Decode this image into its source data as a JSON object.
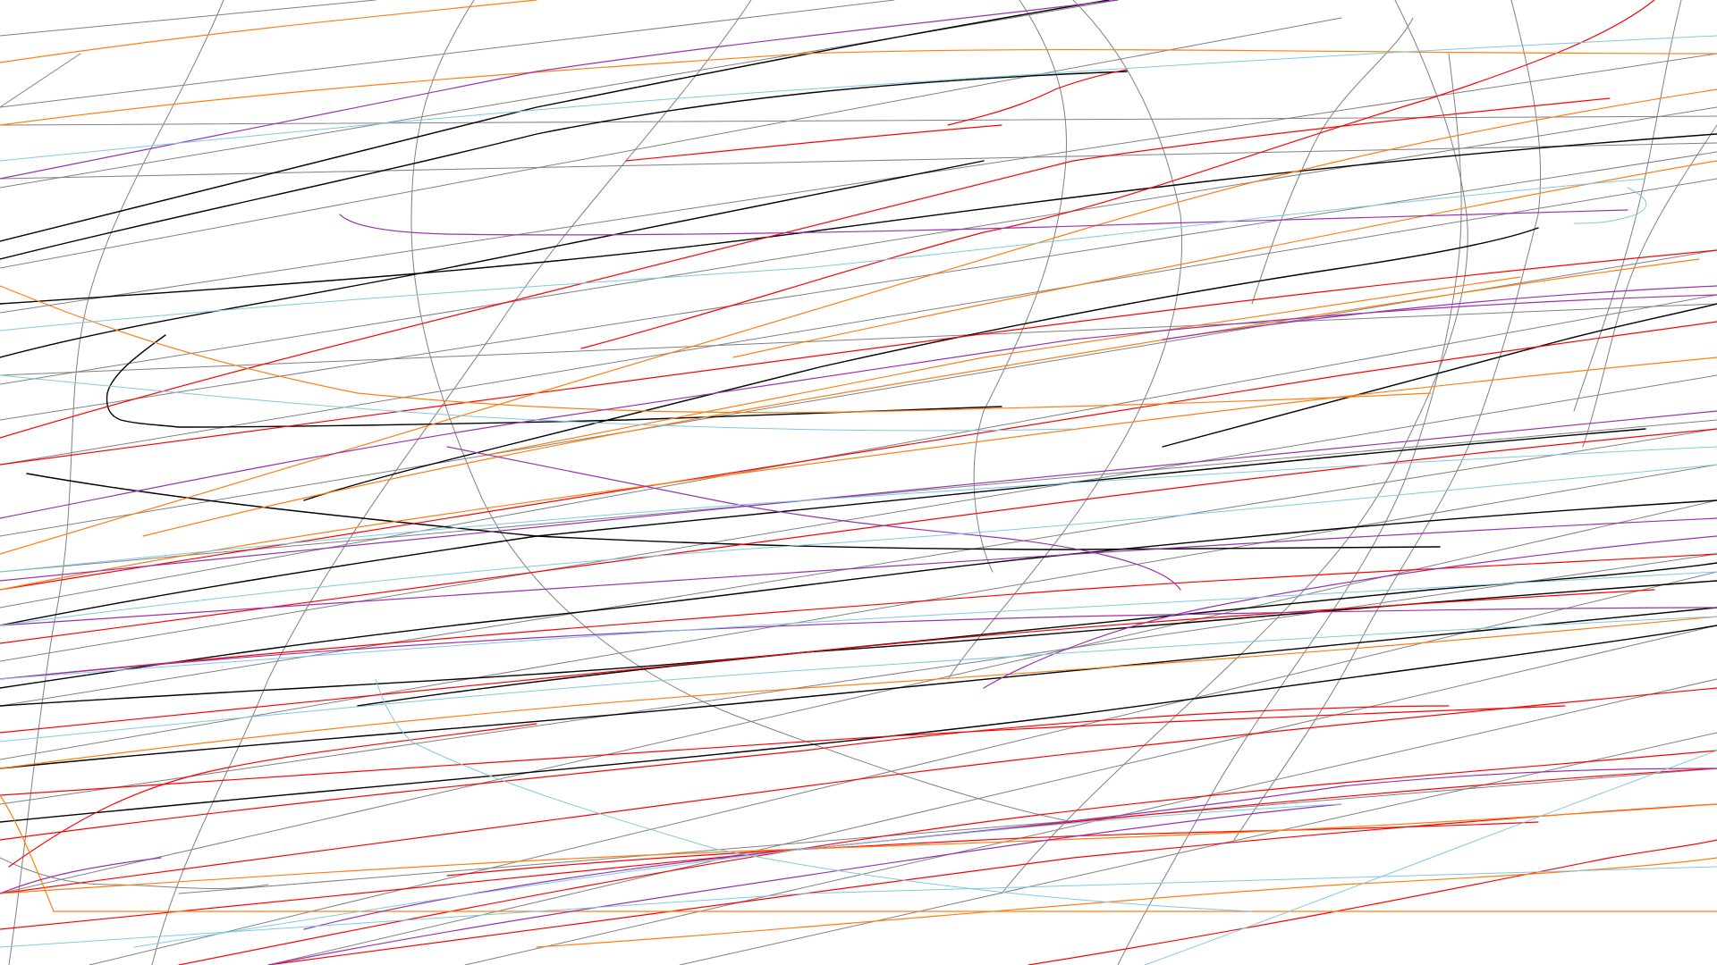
{
  "palette": {
    "background": "#ffffff",
    "black": "#000000",
    "gray": "#808080",
    "red": "#ff0000",
    "orange": "#ff7f0e",
    "purple": "#9b30b0",
    "skyblue": "#7ec8e3"
  },
  "stroke_families": [
    "black",
    "gray",
    "red",
    "orange",
    "purple",
    "skyblue"
  ]
}
